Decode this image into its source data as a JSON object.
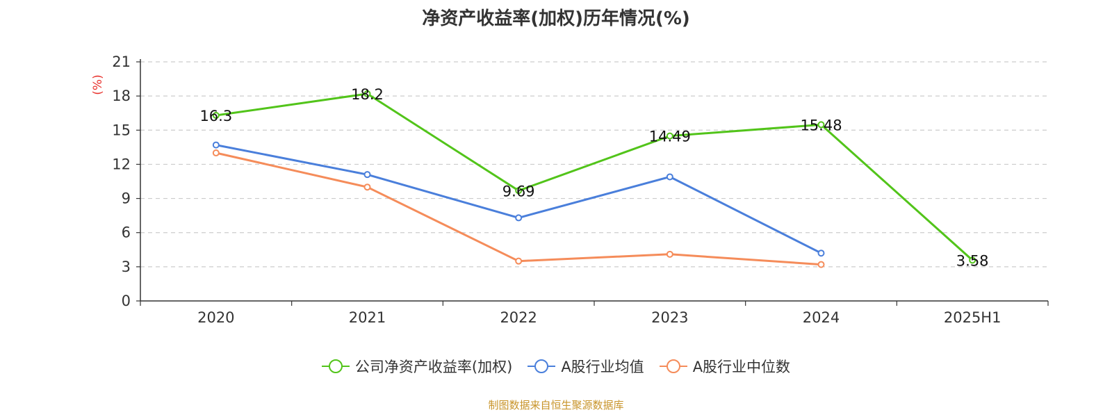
{
  "chart_data": {
    "type": "line",
    "title": "净资产收益率(加权)历年情况(%)",
    "ylabel": "(%)",
    "categories": [
      "2020",
      "2021",
      "2022",
      "2023",
      "2024",
      "2025H1"
    ],
    "ylim": [
      0,
      21
    ],
    "yticks": [
      0,
      3,
      6,
      9,
      12,
      15,
      18,
      21
    ],
    "grid": true,
    "legend_position": "bottom",
    "series": [
      {
        "name": "公司净资产收益率(加权)",
        "color": "#52c41a",
        "values": [
          16.3,
          18.2,
          9.69,
          14.49,
          15.48,
          3.58
        ],
        "labels": [
          "16.3",
          "18.2",
          "9.69",
          "14.49",
          "15.48",
          "3.58"
        ]
      },
      {
        "name": "A股行业均值",
        "color": "#4a7fdb",
        "values": [
          13.7,
          11.1,
          7.3,
          10.9,
          4.2,
          null
        ]
      },
      {
        "name": "A股行业中位数",
        "color": "#f58c5a",
        "values": [
          13.0,
          10.0,
          3.5,
          4.1,
          3.2,
          null
        ]
      }
    ]
  },
  "source_note": "制图数据来自恒生聚源数据库"
}
